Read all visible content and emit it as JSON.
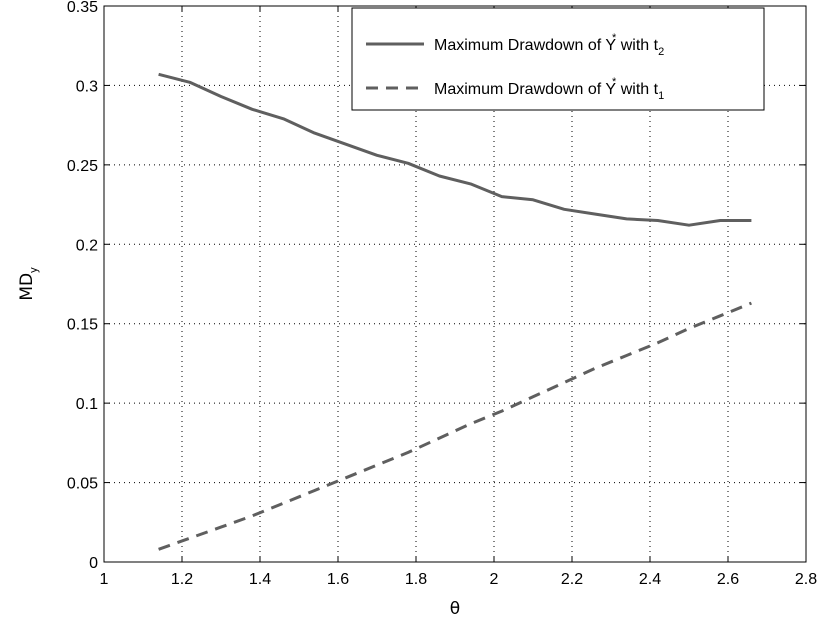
{
  "chart_data": {
    "type": "line",
    "title": "",
    "xlabel": "θ",
    "ylabel_main": "MD",
    "ylabel_sub": "y",
    "xlim": [
      1,
      2.8
    ],
    "ylim": [
      0,
      0.35
    ],
    "xticks": [
      "1",
      "1.2",
      "1.4",
      "1.6",
      "1.8",
      "2",
      "2.2",
      "2.4",
      "2.6",
      "2.8"
    ],
    "yticks": [
      "0",
      "0.05",
      "0.1",
      "0.15",
      "0.2",
      "0.25",
      "0.3",
      "0.35"
    ],
    "grid": true,
    "legend_position": "top-right",
    "series": [
      {
        "name_prefix": "Maximum Drawdown of Y",
        "name_sup": "*",
        "name_middle": " with t",
        "name_sub": "2",
        "style": "solid",
        "color": "#5f5f5f",
        "x": [
          1.14,
          1.22,
          1.3,
          1.38,
          1.46,
          1.54,
          1.62,
          1.7,
          1.78,
          1.86,
          1.94,
          2.02,
          2.1,
          2.18,
          2.26,
          2.34,
          2.42,
          2.5,
          2.58,
          2.66
        ],
        "y": [
          0.307,
          0.302,
          0.293,
          0.285,
          0.279,
          0.27,
          0.263,
          0.256,
          0.251,
          0.243,
          0.238,
          0.23,
          0.228,
          0.222,
          0.219,
          0.216,
          0.215,
          0.212,
          0.215,
          0.215
        ]
      },
      {
        "name_prefix": "Maximum Drawdown of Y",
        "name_sup": "*",
        "name_middle": " with t",
        "name_sub": "1",
        "style": "dashed",
        "color": "#5f5f5f",
        "x": [
          1.14,
          1.22,
          1.3,
          1.38,
          1.46,
          1.54,
          1.62,
          1.7,
          1.78,
          1.86,
          1.94,
          2.02,
          2.1,
          2.18,
          2.26,
          2.34,
          2.42,
          2.5,
          2.58,
          2.66
        ],
        "y": [
          0.008,
          0.015,
          0.022,
          0.029,
          0.037,
          0.045,
          0.053,
          0.061,
          0.069,
          0.078,
          0.087,
          0.095,
          0.104,
          0.113,
          0.122,
          0.13,
          0.138,
          0.147,
          0.155,
          0.163
        ]
      }
    ]
  }
}
